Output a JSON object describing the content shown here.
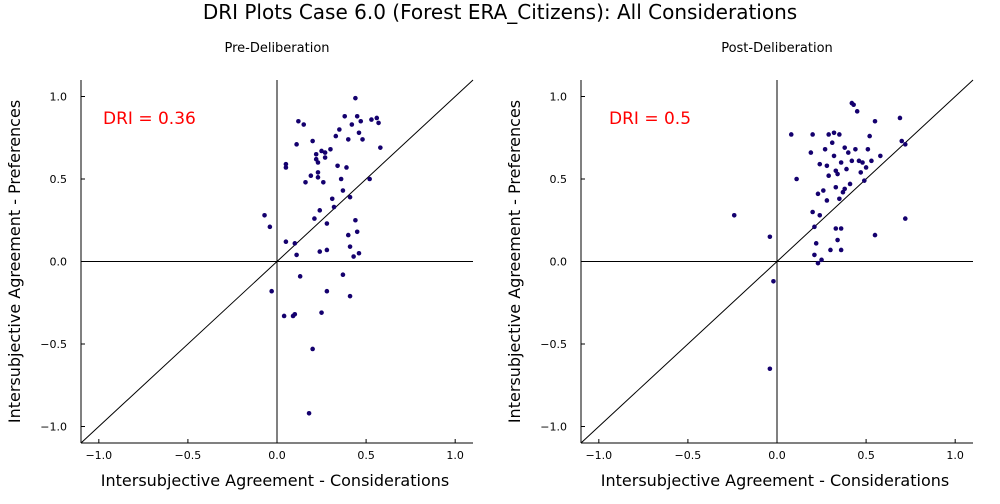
{
  "figure": {
    "title": "DRI Plots Case 6.0 (Forest ERA_Citizens): All Considerations"
  },
  "colors": {
    "points": "#14006e",
    "dri_text": "#ff0000",
    "axes": "#000000"
  },
  "chart_data": [
    {
      "type": "scatter",
      "title": "Pre-Deliberation",
      "xlabel": "Intersubjective Agreement - Considerations",
      "ylabel": "Intersubjective Agreement - Preferences",
      "xlim": [
        -1.1,
        1.1
      ],
      "ylim": [
        -1.1,
        1.1
      ],
      "xticks": [
        -1.0,
        -0.5,
        0.0,
        0.5,
        1.0
      ],
      "yticks": [
        -1.0,
        -0.5,
        0.0,
        0.5,
        1.0
      ],
      "xtick_labels": [
        "−1.0",
        "−0.5",
        "0.0",
        "0.5",
        "1.0"
      ],
      "ytick_labels": [
        "−1.0",
        "−0.5",
        "0.0",
        "0.5",
        "1.0"
      ],
      "grid": false,
      "annotation": "DRI = 0.36",
      "points": [
        [
          -0.07,
          0.28
        ],
        [
          -0.04,
          0.21
        ],
        [
          -0.03,
          -0.18
        ],
        [
          0.05,
          0.57
        ],
        [
          0.05,
          0.59
        ],
        [
          0.05,
          0.12
        ],
        [
          0.04,
          -0.33
        ],
        [
          0.09,
          -0.33
        ],
        [
          0.1,
          0.11
        ],
        [
          0.11,
          0.04
        ],
        [
          0.1,
          -0.32
        ],
        [
          0.11,
          0.71
        ],
        [
          0.12,
          0.85
        ],
        [
          0.13,
          -0.09
        ],
        [
          0.15,
          0.83
        ],
        [
          0.16,
          0.48
        ],
        [
          0.18,
          -0.92
        ],
        [
          0.19,
          0.52
        ],
        [
          0.2,
          0.73
        ],
        [
          0.21,
          0.26
        ],
        [
          0.22,
          0.62
        ],
        [
          0.22,
          0.65
        ],
        [
          0.23,
          0.6
        ],
        [
          0.23,
          0.54
        ],
        [
          0.23,
          0.51
        ],
        [
          0.24,
          0.31
        ],
        [
          0.25,
          0.67
        ],
        [
          0.26,
          0.48
        ],
        [
          0.27,
          0.63
        ],
        [
          0.27,
          0.66
        ],
        [
          0.28,
          0.23
        ],
        [
          0.28,
          0.07
        ],
        [
          0.28,
          -0.18
        ],
        [
          0.2,
          -0.53
        ],
        [
          0.25,
          -0.31
        ],
        [
          0.24,
          0.06
        ],
        [
          0.3,
          0.68
        ],
        [
          0.31,
          0.38
        ],
        [
          0.32,
          0.33
        ],
        [
          0.33,
          0.76
        ],
        [
          0.34,
          0.58
        ],
        [
          0.35,
          0.8
        ],
        [
          0.36,
          0.5
        ],
        [
          0.37,
          0.43
        ],
        [
          0.37,
          -0.08
        ],
        [
          0.38,
          0.88
        ],
        [
          0.39,
          0.57
        ],
        [
          0.4,
          0.74
        ],
        [
          0.4,
          0.16
        ],
        [
          0.41,
          0.09
        ],
        [
          0.41,
          0.39
        ],
        [
          0.41,
          -0.21
        ],
        [
          0.42,
          0.83
        ],
        [
          0.43,
          0.03
        ],
        [
          0.44,
          0.25
        ],
        [
          0.44,
          0.99
        ],
        [
          0.45,
          0.88
        ],
        [
          0.46,
          0.78
        ],
        [
          0.45,
          0.18
        ],
        [
          0.46,
          0.05
        ],
        [
          0.47,
          0.85
        ],
        [
          0.48,
          0.74
        ],
        [
          0.52,
          0.5
        ],
        [
          0.53,
          0.86
        ],
        [
          0.56,
          0.87
        ],
        [
          0.57,
          0.84
        ],
        [
          0.58,
          0.69
        ]
      ]
    },
    {
      "type": "scatter",
      "title": "Post-Deliberation",
      "xlabel": "Intersubjective Agreement - Considerations",
      "ylabel": "Intersubjective Agreement - Preferences",
      "xlim": [
        -1.1,
        1.1
      ],
      "ylim": [
        -1.1,
        1.1
      ],
      "xticks": [
        -1.0,
        -0.5,
        0.0,
        0.5,
        1.0
      ],
      "yticks": [
        -1.0,
        -0.5,
        0.0,
        0.5,
        1.0
      ],
      "xtick_labels": [
        "−1.0",
        "−0.5",
        "0.0",
        "0.5",
        "1.0"
      ],
      "ytick_labels": [
        "−1.0",
        "−0.5",
        "0.0",
        "0.5",
        "1.0"
      ],
      "grid": false,
      "annotation": "DRI = 0.5",
      "points": [
        [
          -0.24,
          0.28
        ],
        [
          -0.04,
          0.15
        ],
        [
          -0.04,
          -0.65
        ],
        [
          -0.02,
          -0.12
        ],
        [
          0.08,
          0.77
        ],
        [
          0.11,
          0.5
        ],
        [
          0.19,
          0.66
        ],
        [
          0.2,
          0.77
        ],
        [
          0.2,
          0.3
        ],
        [
          0.21,
          0.21
        ],
        [
          0.21,
          0.04
        ],
        [
          0.22,
          0.11
        ],
        [
          0.23,
          0.41
        ],
        [
          0.23,
          -0.01
        ],
        [
          0.24,
          0.59
        ],
        [
          0.24,
          0.28
        ],
        [
          0.25,
          0.01
        ],
        [
          0.26,
          0.43
        ],
        [
          0.27,
          0.68
        ],
        [
          0.28,
          0.58
        ],
        [
          0.28,
          0.37
        ],
        [
          0.29,
          0.52
        ],
        [
          0.29,
          0.77
        ],
        [
          0.3,
          0.07
        ],
        [
          0.31,
          0.72
        ],
        [
          0.32,
          0.78
        ],
        [
          0.32,
          0.64
        ],
        [
          0.33,
          0.55
        ],
        [
          0.33,
          0.45
        ],
        [
          0.33,
          0.2
        ],
        [
          0.34,
          0.53
        ],
        [
          0.34,
          0.13
        ],
        [
          0.35,
          0.77
        ],
        [
          0.35,
          0.38
        ],
        [
          0.36,
          0.6
        ],
        [
          0.36,
          0.2
        ],
        [
          0.36,
          0.07
        ],
        [
          0.37,
          0.42
        ],
        [
          0.38,
          0.44
        ],
        [
          0.38,
          0.69
        ],
        [
          0.39,
          0.56
        ],
        [
          0.4,
          0.66
        ],
        [
          0.41,
          0.47
        ],
        [
          0.42,
          0.96
        ],
        [
          0.42,
          0.61
        ],
        [
          0.43,
          0.95
        ],
        [
          0.44,
          0.68
        ],
        [
          0.45,
          0.91
        ],
        [
          0.46,
          0.61
        ],
        [
          0.47,
          0.54
        ],
        [
          0.48,
          0.6
        ],
        [
          0.49,
          0.49
        ],
        [
          0.5,
          0.57
        ],
        [
          0.51,
          0.68
        ],
        [
          0.52,
          0.76
        ],
        [
          0.53,
          0.61
        ],
        [
          0.55,
          0.85
        ],
        [
          0.55,
          0.16
        ],
        [
          0.58,
          0.64
        ],
        [
          0.69,
          0.87
        ],
        [
          0.7,
          0.73
        ],
        [
          0.72,
          0.71
        ],
        [
          0.72,
          0.26
        ]
      ]
    }
  ]
}
